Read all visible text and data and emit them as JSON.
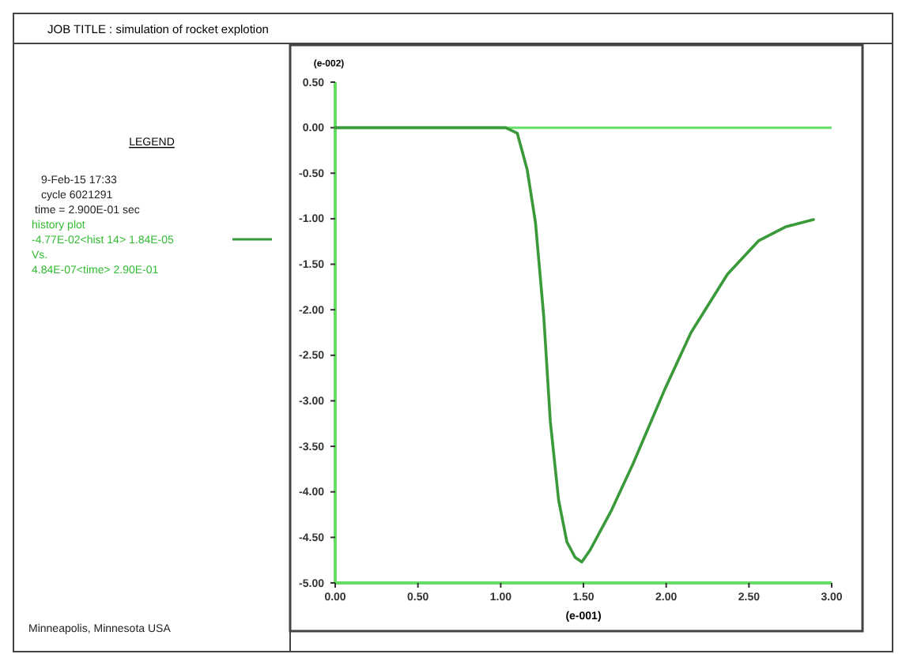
{
  "chart_data": {
    "type": "line",
    "title": "JOB TITLE :  simulation of rocket explotion",
    "xlabel": "(e-001)",
    "ylabel": "(e-002)",
    "legend_title": "LEGEND",
    "legend": "left",
    "annotations": [
      "9-Feb-15  17:33",
      "cycle  6021291",
      "time = 2.900E-01 sec",
      "history plot",
      "Vs.",
      "4.84E-07<time> 2.90E-01",
      "Minneapolis, Minnesota  USA"
    ],
    "xlim": [
      0,
      3
    ],
    "ylim": [
      -5,
      0.5
    ],
    "xticks": [
      {
        "value": 0,
        "label": "0.00"
      },
      {
        "value": 0.5,
        "label": "0.50"
      },
      {
        "value": 1,
        "label": "1.00"
      },
      {
        "value": 1.5,
        "label": "1.50"
      },
      {
        "value": 2,
        "label": "2.00"
      },
      {
        "value": 2.5,
        "label": "2.50"
      },
      {
        "value": 3,
        "label": "3.00"
      }
    ],
    "yticks": [
      {
        "value": 0.5,
        "label": "0.50"
      },
      {
        "value": 0,
        "label": "0.00"
      },
      {
        "value": -0.5,
        "label": "-0.50"
      },
      {
        "value": -1,
        "label": "-1.00"
      },
      {
        "value": -1.5,
        "label": "-1.50"
      },
      {
        "value": -2,
        "label": "-2.00"
      },
      {
        "value": -2.5,
        "label": "-2.50"
      },
      {
        "value": -3,
        "label": "-3.00"
      },
      {
        "value": -3.5,
        "label": "-3.50"
      },
      {
        "value": -4,
        "label": "-4.00"
      },
      {
        "value": -4.5,
        "label": "-4.50"
      },
      {
        "value": -5,
        "label": "-5.00"
      }
    ],
    "ref_lines": [
      {
        "axis": "y",
        "value": 0,
        "color": "#66dd66"
      }
    ],
    "series": [
      {
        "name": "-4.77E-02<hist 14> 1.84E-05",
        "color": "#3a9a3a",
        "x": [
          0,
          1.0,
          1.03,
          1.1,
          1.16,
          1.21,
          1.26,
          1.3,
          1.35,
          1.4,
          1.45,
          1.49,
          1.54,
          1.67,
          1.8,
          1.99,
          2.15,
          2.37,
          2.56,
          2.72,
          2.89
        ],
        "values": [
          0,
          0,
          0,
          -0.06,
          -0.46,
          -1.04,
          -2.07,
          -3.23,
          -4.09,
          -4.55,
          -4.72,
          -4.77,
          -4.64,
          -4.2,
          -3.69,
          -2.88,
          -2.25,
          -1.61,
          -1.24,
          -1.09,
          -1.01
        ]
      }
    ]
  }
}
